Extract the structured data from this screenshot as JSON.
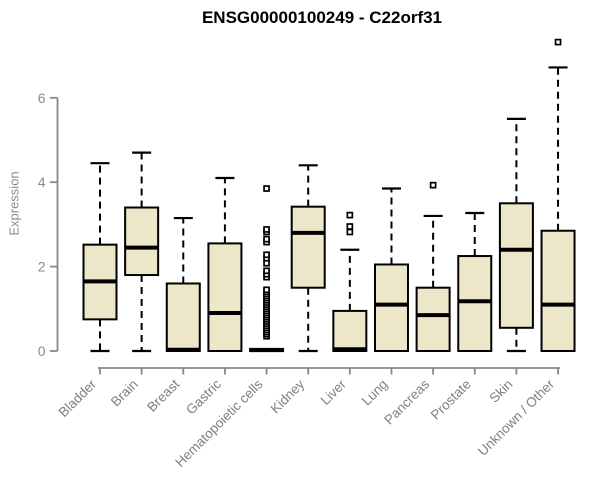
{
  "title": "ENSG00000100249 - C22orf31",
  "colors": {
    "box_fill": "#ede7c9",
    "box_border": "#000000",
    "median": "#000000",
    "whisker": "#000000",
    "outlier_fill": "#ffffff",
    "outlier_border": "#000000",
    "axis": "#888888",
    "y_tick_label": "#828c96",
    "x_tick_label": "#808080",
    "title_color": "#000000",
    "background": "#ffffff"
  },
  "chart_data": {
    "type": "boxplot",
    "title": "ENSG00000100249 - C22orf31",
    "xlabel": "",
    "ylabel": "Expression",
    "yticks": [
      0,
      2,
      4,
      6
    ],
    "ylim": [
      0,
      7.5
    ],
    "grid": false,
    "legend": "none",
    "categories": [
      "Bladder",
      "Brain",
      "Breast",
      "Gastric",
      "Hematopoietic cells",
      "Kidney",
      "Liver",
      "Lung",
      "Pancreas",
      "Prostate",
      "Skin",
      "Unknown / Other"
    ],
    "boxes": [
      {
        "category": "Bladder",
        "whisker_low": 0,
        "q1": 0.75,
        "median": 1.65,
        "q3": 2.52,
        "whisker_high": 4.45,
        "outliers": []
      },
      {
        "category": "Brain",
        "whisker_low": 0,
        "q1": 1.8,
        "median": 2.45,
        "q3": 3.4,
        "whisker_high": 4.7,
        "outliers": []
      },
      {
        "category": "Breast",
        "whisker_low": 0,
        "q1": 0.0,
        "median": 0.03,
        "q3": 1.6,
        "whisker_high": 3.15,
        "outliers": []
      },
      {
        "category": "Gastric",
        "whisker_low": 0,
        "q1": 0.0,
        "median": 0.9,
        "q3": 2.55,
        "whisker_high": 4.1,
        "outliers": []
      },
      {
        "category": "Hematopoietic cells",
        "whisker_low": 0,
        "q1": 0.0,
        "median": 0.02,
        "q3": 0.05,
        "whisker_high": 0.05,
        "outliers": [
          0.35,
          0.4,
          0.45,
          0.5,
          0.55,
          0.6,
          0.65,
          0.7,
          0.75,
          0.8,
          0.85,
          0.9,
          0.95,
          1.0,
          1.05,
          1.1,
          1.15,
          1.2,
          1.25,
          1.3,
          1.35,
          1.4,
          1.45,
          1.75,
          1.82,
          1.9,
          2.08,
          2.2,
          2.28,
          2.58,
          2.65,
          2.82,
          2.88,
          3.85
        ]
      },
      {
        "category": "Kidney",
        "whisker_low": 0,
        "q1": 1.5,
        "median": 2.8,
        "q3": 3.42,
        "whisker_high": 4.4,
        "outliers": []
      },
      {
        "category": "Liver",
        "whisker_low": 0,
        "q1": 0.0,
        "median": 0.04,
        "q3": 0.95,
        "whisker_high": 2.4,
        "outliers": [
          2.82,
          2.95,
          3.22
        ]
      },
      {
        "category": "Lung",
        "whisker_low": 0,
        "q1": 0.0,
        "median": 1.1,
        "q3": 2.05,
        "whisker_high": 3.85,
        "outliers": []
      },
      {
        "category": "Pancreas",
        "whisker_low": 0,
        "q1": 0.0,
        "median": 0.85,
        "q3": 1.5,
        "whisker_high": 3.2,
        "outliers": [
          3.93
        ]
      },
      {
        "category": "Prostate",
        "whisker_low": 0,
        "q1": 0.0,
        "median": 1.18,
        "q3": 2.25,
        "whisker_high": 3.27,
        "outliers": []
      },
      {
        "category": "Skin",
        "whisker_low": 0,
        "q1": 0.55,
        "median": 2.4,
        "q3": 3.5,
        "whisker_high": 5.5,
        "outliers": []
      },
      {
        "category": "Unknown / Other",
        "whisker_low": 0,
        "q1": 0.0,
        "median": 1.1,
        "q3": 2.85,
        "whisker_high": 6.72,
        "outliers": [
          7.32
        ]
      }
    ]
  }
}
